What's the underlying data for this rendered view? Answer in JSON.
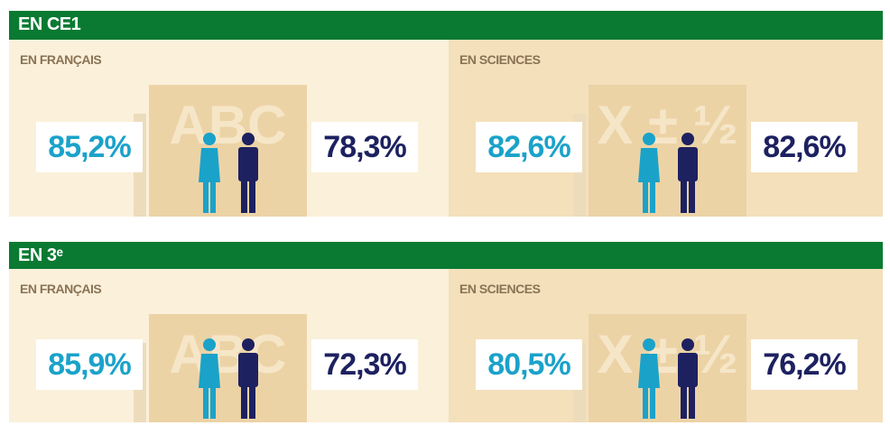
{
  "sections": [
    {
      "title": "EN CE1",
      "panels": [
        {
          "subject": "EN FRANÇAIS",
          "board": "ABC",
          "girls": "85,2%",
          "boys": "78,3%"
        },
        {
          "subject": "EN SCIENCES",
          "board": "X ± ½",
          "girls": "82,6%",
          "boys": "82,6%"
        }
      ]
    },
    {
      "title": "EN 3ᵉ",
      "panels": [
        {
          "subject": "EN FRANÇAIS",
          "board": "ABC",
          "girls": "85,9%",
          "boys": "72,3%"
        },
        {
          "subject": "EN SCIENCES",
          "board": "X ± ½",
          "girls": "80,5%",
          "boys": "76,2%"
        }
      ]
    }
  ]
}
